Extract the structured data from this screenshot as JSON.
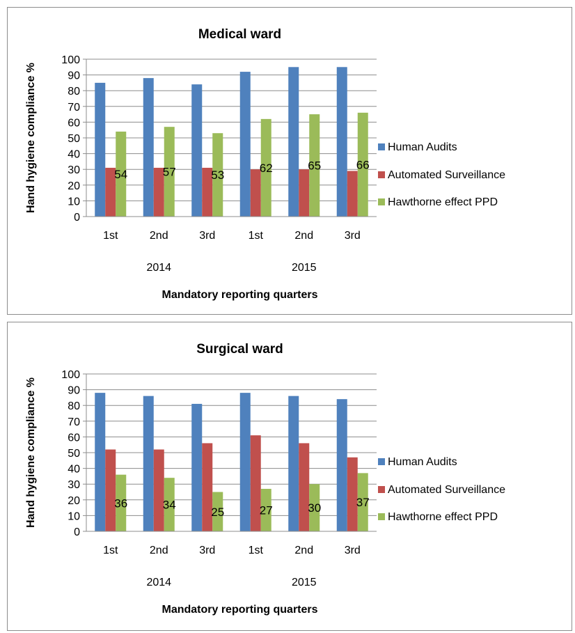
{
  "chart_data": [
    {
      "type": "bar",
      "title": "Medical ward",
      "xlabel": "Mandatory reporting quarters",
      "ylabel": "Hand hygiene compliance %",
      "ylim": [
        0,
        100
      ],
      "yticks": [
        0,
        10,
        20,
        30,
        40,
        50,
        60,
        70,
        80,
        90,
        100
      ],
      "categories": [
        "1st",
        "2nd",
        "3rd",
        "1st",
        "2nd",
        "3rd"
      ],
      "groups": [
        {
          "label": "2014",
          "span": [
            0,
            2
          ]
        },
        {
          "label": "2015",
          "span": [
            3,
            5
          ]
        }
      ],
      "grid": true,
      "legend_position": "right",
      "series": [
        {
          "name": "Human Audits",
          "color": "#4F81BD",
          "values": [
            85,
            88,
            84,
            92,
            95,
            95
          ],
          "data_labels": false
        },
        {
          "name": "Automated Surveillance",
          "color": "#C0504D",
          "values": [
            31,
            31,
            31,
            30,
            30,
            29
          ],
          "data_labels": false
        },
        {
          "name": "Hawthorne effect PPD",
          "color": "#9BBB59",
          "values": [
            54,
            57,
            53,
            62,
            65,
            66
          ],
          "data_labels": true
        }
      ]
    },
    {
      "type": "bar",
      "title": "Surgical ward",
      "xlabel": "Mandatory reporting quarters",
      "ylabel": "Hand hygiene compliance %",
      "ylim": [
        0,
        100
      ],
      "yticks": [
        0,
        10,
        20,
        30,
        40,
        50,
        60,
        70,
        80,
        90,
        100
      ],
      "categories": [
        "1st",
        "2nd",
        "3rd",
        "1st",
        "2nd",
        "3rd"
      ],
      "groups": [
        {
          "label": "2014",
          "span": [
            0,
            2
          ]
        },
        {
          "label": "2015",
          "span": [
            3,
            5
          ]
        }
      ],
      "grid": true,
      "legend_position": "right",
      "series": [
        {
          "name": "Human Audits",
          "color": "#4F81BD",
          "values": [
            88,
            86,
            81,
            88,
            86,
            84
          ],
          "data_labels": false
        },
        {
          "name": "Automated Surveillance",
          "color": "#C0504D",
          "values": [
            52,
            52,
            56,
            61,
            56,
            47
          ],
          "data_labels": false
        },
        {
          "name": "Hawthorne effect PPD",
          "color": "#9BBB59",
          "values": [
            36,
            34,
            25,
            27,
            30,
            37
          ],
          "data_labels": true
        }
      ]
    }
  ]
}
